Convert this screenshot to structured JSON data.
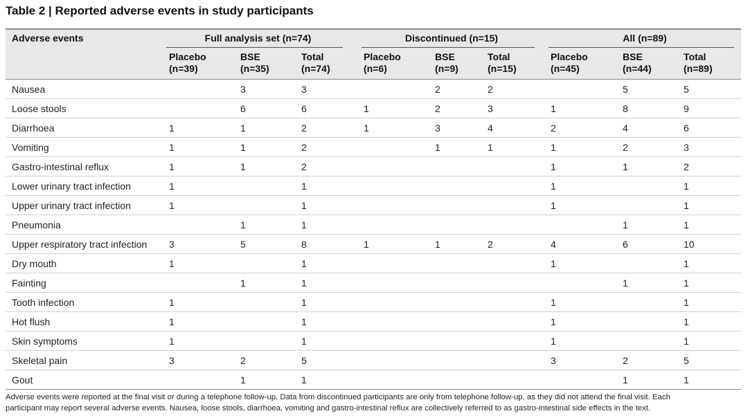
{
  "title": "Table 2 | Reported adverse events in study participants",
  "table": {
    "corner": "Adverse events",
    "groups": [
      "Full analysis set (n=74)",
      "Discontinued (n=15)",
      "All (n=89)"
    ],
    "subheaders": [
      {
        "name": "Placebo",
        "n": "(n=39)"
      },
      {
        "name": "BSE",
        "n": "(n=35)"
      },
      {
        "name": "Total",
        "n": "(n=74)"
      },
      {
        "name": "Placebo",
        "n": "(n=6)"
      },
      {
        "name": "BSE",
        "n": "(n=9)"
      },
      {
        "name": "Total",
        "n": "(n=15)"
      },
      {
        "name": "Placebo",
        "n": "(n=45)"
      },
      {
        "name": "BSE",
        "n": "(n=44)"
      },
      {
        "name": "Total",
        "n": "(n=89)"
      }
    ],
    "rows": [
      {
        "event": "Nausea",
        "cells": [
          null,
          3,
          3,
          null,
          2,
          2,
          null,
          5,
          5
        ]
      },
      {
        "event": "Loose stools",
        "cells": [
          null,
          6,
          6,
          1,
          2,
          3,
          1,
          8,
          9
        ]
      },
      {
        "event": "Diarrhoea",
        "cells": [
          1,
          1,
          2,
          1,
          3,
          4,
          2,
          4,
          6
        ]
      },
      {
        "event": "Vomiting",
        "cells": [
          1,
          1,
          2,
          null,
          1,
          1,
          1,
          2,
          3
        ]
      },
      {
        "event": "Gastro-intestinal reflux",
        "cells": [
          1,
          1,
          2,
          null,
          null,
          null,
          1,
          1,
          2
        ]
      },
      {
        "event": "Lower urinary tract infection",
        "cells": [
          1,
          null,
          1,
          null,
          null,
          null,
          1,
          null,
          1
        ]
      },
      {
        "event": "Upper urinary tract infection",
        "cells": [
          1,
          null,
          1,
          null,
          null,
          null,
          1,
          null,
          1
        ]
      },
      {
        "event": "Pneumonia",
        "cells": [
          null,
          1,
          1,
          null,
          null,
          null,
          null,
          1,
          1
        ]
      },
      {
        "event": "Upper respiratory tract infection",
        "cells": [
          3,
          5,
          8,
          1,
          1,
          2,
          4,
          6,
          10
        ]
      },
      {
        "event": "Dry mouth",
        "cells": [
          1,
          null,
          1,
          null,
          null,
          null,
          1,
          null,
          1
        ]
      },
      {
        "event": "Fainting",
        "cells": [
          null,
          1,
          1,
          null,
          null,
          null,
          null,
          1,
          1
        ]
      },
      {
        "event": "Tooth infection",
        "cells": [
          1,
          null,
          1,
          null,
          null,
          null,
          1,
          null,
          1
        ]
      },
      {
        "event": "Hot flush",
        "cells": [
          1,
          null,
          1,
          null,
          null,
          null,
          1,
          null,
          1
        ]
      },
      {
        "event": "Skin symptoms",
        "cells": [
          1,
          null,
          1,
          null,
          null,
          null,
          1,
          null,
          1
        ]
      },
      {
        "event": "Skeletal pain",
        "cells": [
          3,
          2,
          5,
          null,
          null,
          null,
          3,
          2,
          5
        ]
      },
      {
        "event": "Gout",
        "cells": [
          null,
          1,
          1,
          null,
          null,
          null,
          null,
          1,
          1
        ]
      }
    ]
  },
  "footnote": [
    "Adverse events were reported at the final visit or during a telephone follow-up. Data from discontinued participants are only from telephone follow-up, as they did not attend the final visit. Each",
    "participant may report several adverse events. Nausea, loose stools, diarrhoea, vomiting and gastro-intestinal reflux are collectively referred to as gastro-intestinal side effects in the text."
  ]
}
